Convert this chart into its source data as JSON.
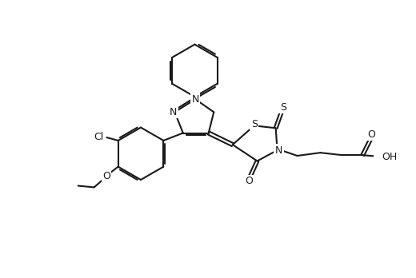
{
  "background_color": "#ffffff",
  "line_color": "#1a1a1a",
  "line_width": 1.5,
  "font_size": 9,
  "fig_width": 5.2,
  "fig_height": 3.48,
  "dpi": 100,
  "xlim": [
    0,
    10.4
  ],
  "ylim": [
    0,
    6.96
  ]
}
